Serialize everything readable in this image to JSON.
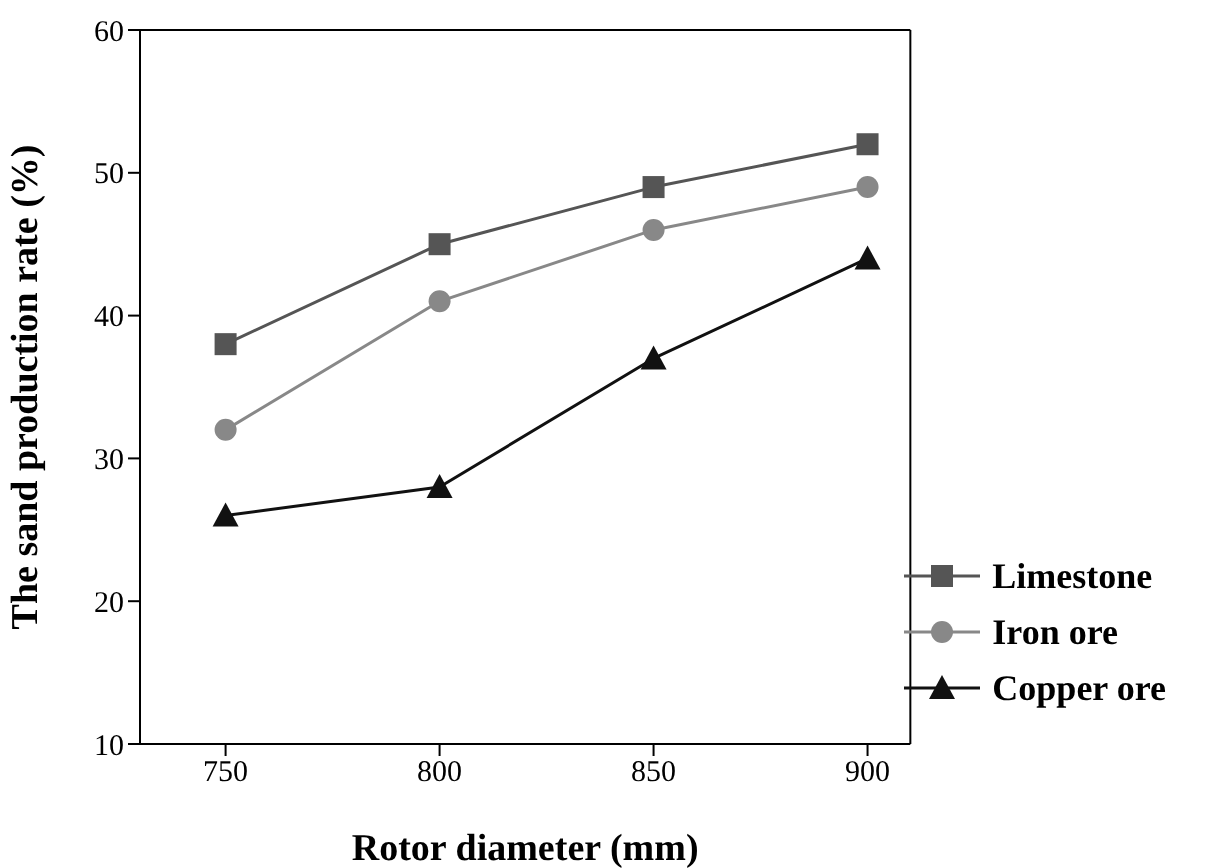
{
  "chart_data": {
    "type": "line",
    "xlabel": "Rotor diameter (mm)",
    "ylabel": "The sand production rate (%)",
    "x": [
      750,
      800,
      850,
      900
    ],
    "series": [
      {
        "name": "Limestone",
        "color": "#555555",
        "marker": "square",
        "values": [
          38,
          45,
          49,
          52
        ]
      },
      {
        "name": "Iron ore",
        "color": "#888888",
        "marker": "circle",
        "values": [
          32,
          41,
          46,
          49
        ]
      },
      {
        "name": "Copper ore",
        "color": "#111111",
        "marker": "triangle",
        "values": [
          26,
          28,
          37,
          44
        ]
      }
    ],
    "xlim": [
      730,
      910
    ],
    "xticks": [
      750,
      800,
      850,
      900
    ],
    "ylim": [
      10,
      60
    ],
    "yticks": [
      10,
      20,
      30,
      40,
      50,
      60
    ],
    "legend": "bottom right",
    "grid": false,
    "line_style": "solid"
  }
}
